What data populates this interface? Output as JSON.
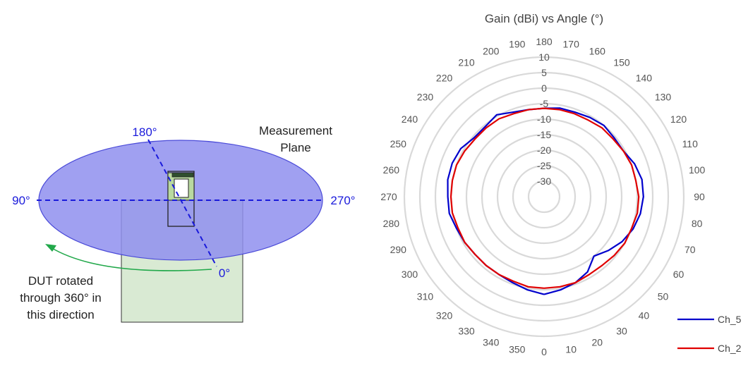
{
  "diagram": {
    "angle_labels": {
      "a180": "180°",
      "a90": "90°",
      "a270": "270°",
      "a0": "0°"
    },
    "plane_label": {
      "line1": "Measurement",
      "line2": "Plane"
    },
    "rotation_note": {
      "line1": "DUT rotated",
      "line2": "through 360° in",
      "line3": "this direction"
    },
    "colors": {
      "plane_fill": "#9999f0",
      "dut_fill": "#d9ead3",
      "axis_blue": "#1a1adb",
      "arrow_green": "#21a84a"
    }
  },
  "chart_data": {
    "type": "polar-line",
    "title": "Gain (dBi) vs Angle (°)",
    "r_axis": {
      "min": -35,
      "max": 10,
      "ticks": [
        -30,
        -25,
        -20,
        -15,
        -10,
        -5,
        0,
        5,
        10
      ]
    },
    "angle_ticks": [
      0,
      10,
      20,
      30,
      40,
      50,
      60,
      70,
      80,
      90,
      100,
      110,
      120,
      130,
      140,
      150,
      160,
      170,
      180,
      190,
      200,
      210,
      220,
      230,
      240,
      250,
      260,
      270,
      280,
      290,
      300,
      310,
      320,
      330,
      340,
      350
    ],
    "angles": [
      0,
      10,
      20,
      30,
      40,
      50,
      60,
      70,
      80,
      90,
      100,
      110,
      120,
      130,
      140,
      150,
      160,
      170,
      180,
      190,
      200,
      210,
      220,
      230,
      240,
      250,
      260,
      270,
      280,
      290,
      300,
      310,
      320,
      330,
      340,
      350
    ],
    "grid": true,
    "legend_position": "bottom-right",
    "series": [
      {
        "name": "Ch_5",
        "color": "#0000cc",
        "values": [
          -3.5,
          -4.5,
          -5.5,
          -7,
          -10,
          -8,
          -6,
          -4.5,
          -3.5,
          -3,
          -3,
          -4,
          -5.5,
          -5.5,
          -5,
          -5.5,
          -6,
          -6,
          -6.5,
          -6.5,
          -6,
          -4.5,
          -5.5,
          -5.5,
          -4,
          -3.5,
          -3.5,
          -4,
          -4,
          -5,
          -5.5,
          -6,
          -6,
          -6,
          -5.5,
          -4.5
        ]
      },
      {
        "name": "Ch_2",
        "color": "#e00000",
        "values": [
          -5.5,
          -5.5,
          -5.5,
          -6,
          -6,
          -5.5,
          -5,
          -5,
          -4.5,
          -4.5,
          -5,
          -5,
          -5.5,
          -6,
          -6,
          -6.5,
          -6.5,
          -6.5,
          -6.5,
          -6.5,
          -6.5,
          -6,
          -6,
          -6,
          -5.5,
          -5,
          -5,
          -5,
          -5,
          -5.5,
          -5.5,
          -6,
          -6,
          -6,
          -6,
          -5.5
        ]
      }
    ]
  }
}
